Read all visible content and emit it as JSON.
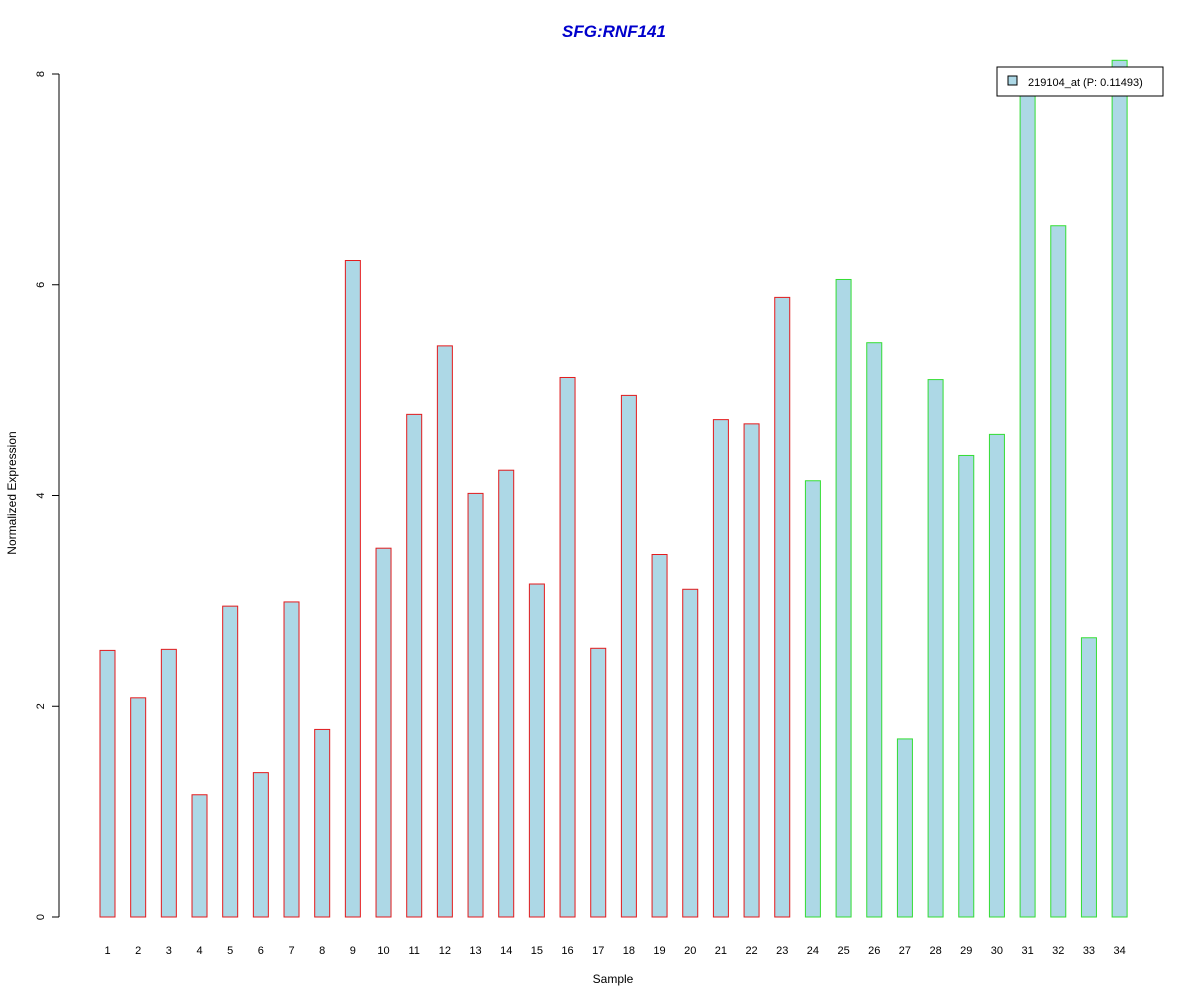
{
  "chart_data": {
    "type": "bar",
    "title": "SFG:RNF141",
    "xlabel": "Sample",
    "ylabel": "Normalized Expression",
    "categories": [
      "1",
      "2",
      "3",
      "4",
      "5",
      "6",
      "7",
      "8",
      "9",
      "10",
      "11",
      "12",
      "13",
      "14",
      "15",
      "16",
      "17",
      "18",
      "19",
      "20",
      "21",
      "22",
      "23",
      "24",
      "25",
      "26",
      "27",
      "28",
      "29",
      "30",
      "31",
      "32",
      "33",
      "34"
    ],
    "series": [
      {
        "name": "219104_at (P: 0.11493)",
        "values": [
          2.53,
          2.08,
          2.54,
          1.16,
          2.95,
          1.37,
          2.99,
          1.78,
          6.23,
          3.5,
          4.77,
          5.42,
          4.02,
          4.24,
          3.16,
          5.12,
          2.55,
          4.95,
          3.44,
          3.11,
          4.72,
          4.68,
          5.88,
          4.14,
          6.05,
          5.45,
          1.69,
          5.1,
          4.38,
          4.58,
          7.9,
          6.56,
          2.65,
          8.13
        ]
      }
    ],
    "group_index": [
      0,
      0,
      0,
      0,
      0,
      0,
      0,
      0,
      0,
      0,
      0,
      0,
      0,
      0,
      0,
      0,
      0,
      0,
      0,
      0,
      0,
      0,
      0,
      1,
      1,
      1,
      1,
      1,
      1,
      1,
      1,
      1,
      1,
      1
    ],
    "ylim": [
      0,
      8
    ],
    "yticks": [
      "0",
      "2",
      "4",
      "6",
      "8"
    ],
    "grid": false,
    "legend_position": "top-right",
    "colors": {
      "bar_fill": "#add8e6",
      "group_borders": [
        "#e31a1c",
        "#33dd33"
      ],
      "title": "#0000cc",
      "axis": "#000000"
    }
  }
}
